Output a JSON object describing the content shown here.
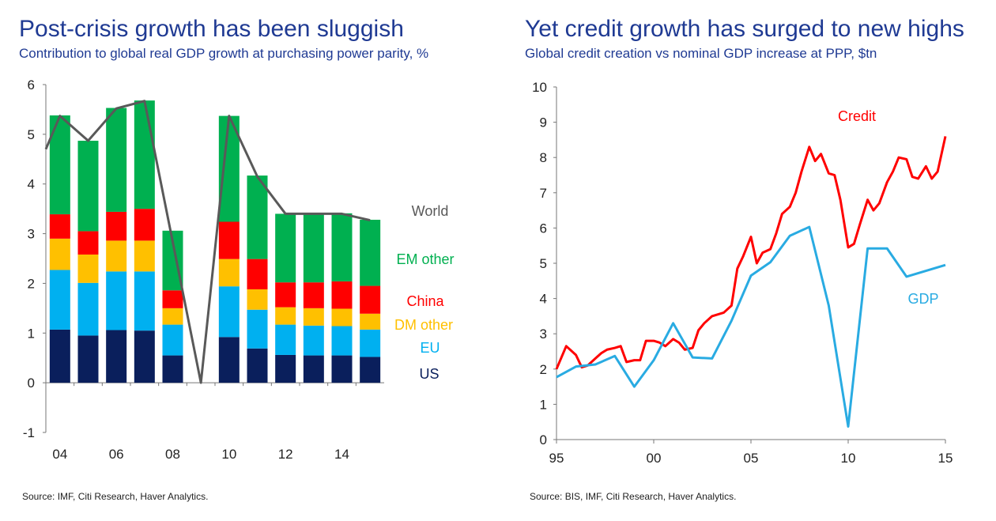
{
  "left": {
    "title": "Post-crisis growth has been sluggish",
    "subtitle": "Contribution to global real GDP growth at purchasing power parity, %",
    "source": "Source: IMF, Citi Research, Haver Analytics."
  },
  "right": {
    "title": "Yet credit growth has surged to new highs",
    "subtitle": "Global credit creation vs nominal GDP increase at PPP, $tn",
    "source": "Source: BIS, IMF, Citi Research, Haver Analytics."
  },
  "chart_data": [
    {
      "type": "bar",
      "stacked": true,
      "years": [
        2004,
        2005,
        2006,
        2007,
        2008,
        2009,
        2010,
        2011,
        2012,
        2013,
        2014,
        2015
      ],
      "ylim": [
        -1,
        6
      ],
      "yticks": [
        "-1",
        "0",
        "1",
        "2",
        "3",
        "4",
        "5",
        "6"
      ],
      "ytick_values": [
        -1,
        0,
        1,
        2,
        3,
        4,
        5,
        6
      ],
      "xticks": [
        "04",
        "06",
        "08",
        "10",
        "12",
        "14"
      ],
      "xtick_years": [
        2004,
        2006,
        2008,
        2010,
        2012,
        2014
      ],
      "series": [
        {
          "name": "US",
          "color": "#0a1f5c",
          "values": [
            1.07,
            0.95,
            1.06,
            1.05,
            0.55,
            0,
            0.92,
            0.69,
            0.56,
            0.55,
            0.55,
            0.52
          ]
        },
        {
          "name": "EU",
          "color": "#00b0f0",
          "values": [
            1.2,
            1.06,
            1.18,
            1.19,
            0.62,
            0,
            1.02,
            0.78,
            0.61,
            0.6,
            0.59,
            0.55
          ]
        },
        {
          "name": "DM other",
          "color": "#ffc000",
          "values": [
            0.63,
            0.57,
            0.62,
            0.62,
            0.33,
            0,
            0.55,
            0.41,
            0.35,
            0.35,
            0.35,
            0.32
          ]
        },
        {
          "name": "China",
          "color": "#ff0000",
          "values": [
            0.49,
            0.47,
            0.58,
            0.64,
            0.36,
            0,
            0.75,
            0.61,
            0.5,
            0.52,
            0.55,
            0.56
          ]
        },
        {
          "name": "EM other",
          "color": "#00b050",
          "values": [
            1.99,
            1.82,
            2.09,
            2.18,
            1.2,
            0,
            2.13,
            1.68,
            1.38,
            1.38,
            1.37,
            1.33
          ]
        }
      ],
      "world": {
        "name": "World",
        "color": "#595959",
        "x": [
          2003.5,
          2004,
          2005,
          2006,
          2007,
          2009,
          2010,
          2011,
          2012,
          2014,
          2015
        ],
        "values": [
          4.7,
          5.37,
          4.87,
          5.52,
          5.67,
          0,
          5.37,
          4.15,
          3.4,
          3.4,
          3.27
        ]
      },
      "legend_labels": [
        {
          "text": "World",
          "color": "#595959"
        },
        {
          "text": "EM other",
          "color": "#00b050"
        },
        {
          "text": "China",
          "color": "#ff0000"
        },
        {
          "text": "DM other",
          "color": "#ffc000"
        },
        {
          "text": "EU",
          "color": "#00b0f0"
        },
        {
          "text": "US",
          "color": "#0a1f5c"
        }
      ]
    },
    {
      "type": "line",
      "xlim": [
        1995,
        2015
      ],
      "ylim": [
        0,
        10
      ],
      "yticks": [
        "0",
        "1",
        "2",
        "3",
        "4",
        "5",
        "6",
        "7",
        "8",
        "9",
        "10"
      ],
      "ytick_values": [
        0,
        1,
        2,
        3,
        4,
        5,
        6,
        7,
        8,
        9,
        10
      ],
      "xticks": [
        "95",
        "00",
        "05",
        "10",
        "15"
      ],
      "xtick_years": [
        1995,
        2000,
        2005,
        2010,
        2015
      ],
      "series": [
        {
          "name": "Credit",
          "color": "#ff0000",
          "x": [
            1995,
            1995.5,
            1996,
            1996.3,
            1996.6,
            1997,
            1997.3,
            1997.6,
            1998,
            1998.3,
            1998.6,
            1999,
            1999.3,
            1999.6,
            2000,
            2000.3,
            2000.6,
            2001,
            2001.3,
            2001.6,
            2002,
            2002.3,
            2002.6,
            2003,
            2003.3,
            2003.6,
            2004,
            2004.3,
            2004.6,
            2005,
            2005.3,
            2005.6,
            2006,
            2006.3,
            2006.6,
            2007,
            2007.3,
            2007.6,
            2008,
            2008.3,
            2008.6,
            2009,
            2009.3,
            2009.6,
            2010,
            2010.3,
            2010.6,
            2011,
            2011.3,
            2011.6,
            2012,
            2012.3,
            2012.6,
            2013,
            2013.3,
            2013.6,
            2014,
            2014.3,
            2014.6,
            2015
          ],
          "values": [
            2.0,
            2.65,
            2.4,
            2.05,
            2.1,
            2.3,
            2.45,
            2.55,
            2.6,
            2.65,
            2.2,
            2.25,
            2.25,
            2.8,
            2.8,
            2.75,
            2.65,
            2.85,
            2.75,
            2.55,
            2.6,
            3.1,
            3.3,
            3.5,
            3.55,
            3.6,
            3.8,
            4.85,
            5.2,
            5.75,
            5.0,
            5.3,
            5.4,
            5.85,
            6.4,
            6.6,
            7.0,
            7.6,
            8.3,
            7.9,
            8.1,
            7.55,
            7.5,
            6.8,
            5.45,
            5.55,
            6.1,
            6.8,
            6.5,
            6.7,
            7.3,
            7.6,
            8.0,
            7.95,
            7.45,
            7.4,
            7.75,
            7.4,
            7.6,
            8.6
          ]
        },
        {
          "name": "GDP",
          "color": "#29abe2",
          "x": [
            1995,
            1996,
            1997,
            1998,
            1999,
            2000,
            2001,
            2002,
            2003,
            2004,
            2005,
            2006,
            2007,
            2008,
            2009,
            2010,
            2011,
            2012,
            2013,
            2015
          ],
          "values": [
            1.77,
            2.07,
            2.13,
            2.37,
            1.5,
            2.25,
            3.3,
            2.33,
            2.3,
            3.37,
            4.65,
            5.03,
            5.78,
            6.03,
            3.8,
            0.37,
            5.42,
            5.42,
            4.62,
            4.95
          ]
        }
      ],
      "labels": [
        {
          "text": "Credit",
          "color": "#ff0000"
        },
        {
          "text": "GDP",
          "color": "#29abe2"
        }
      ]
    }
  ]
}
